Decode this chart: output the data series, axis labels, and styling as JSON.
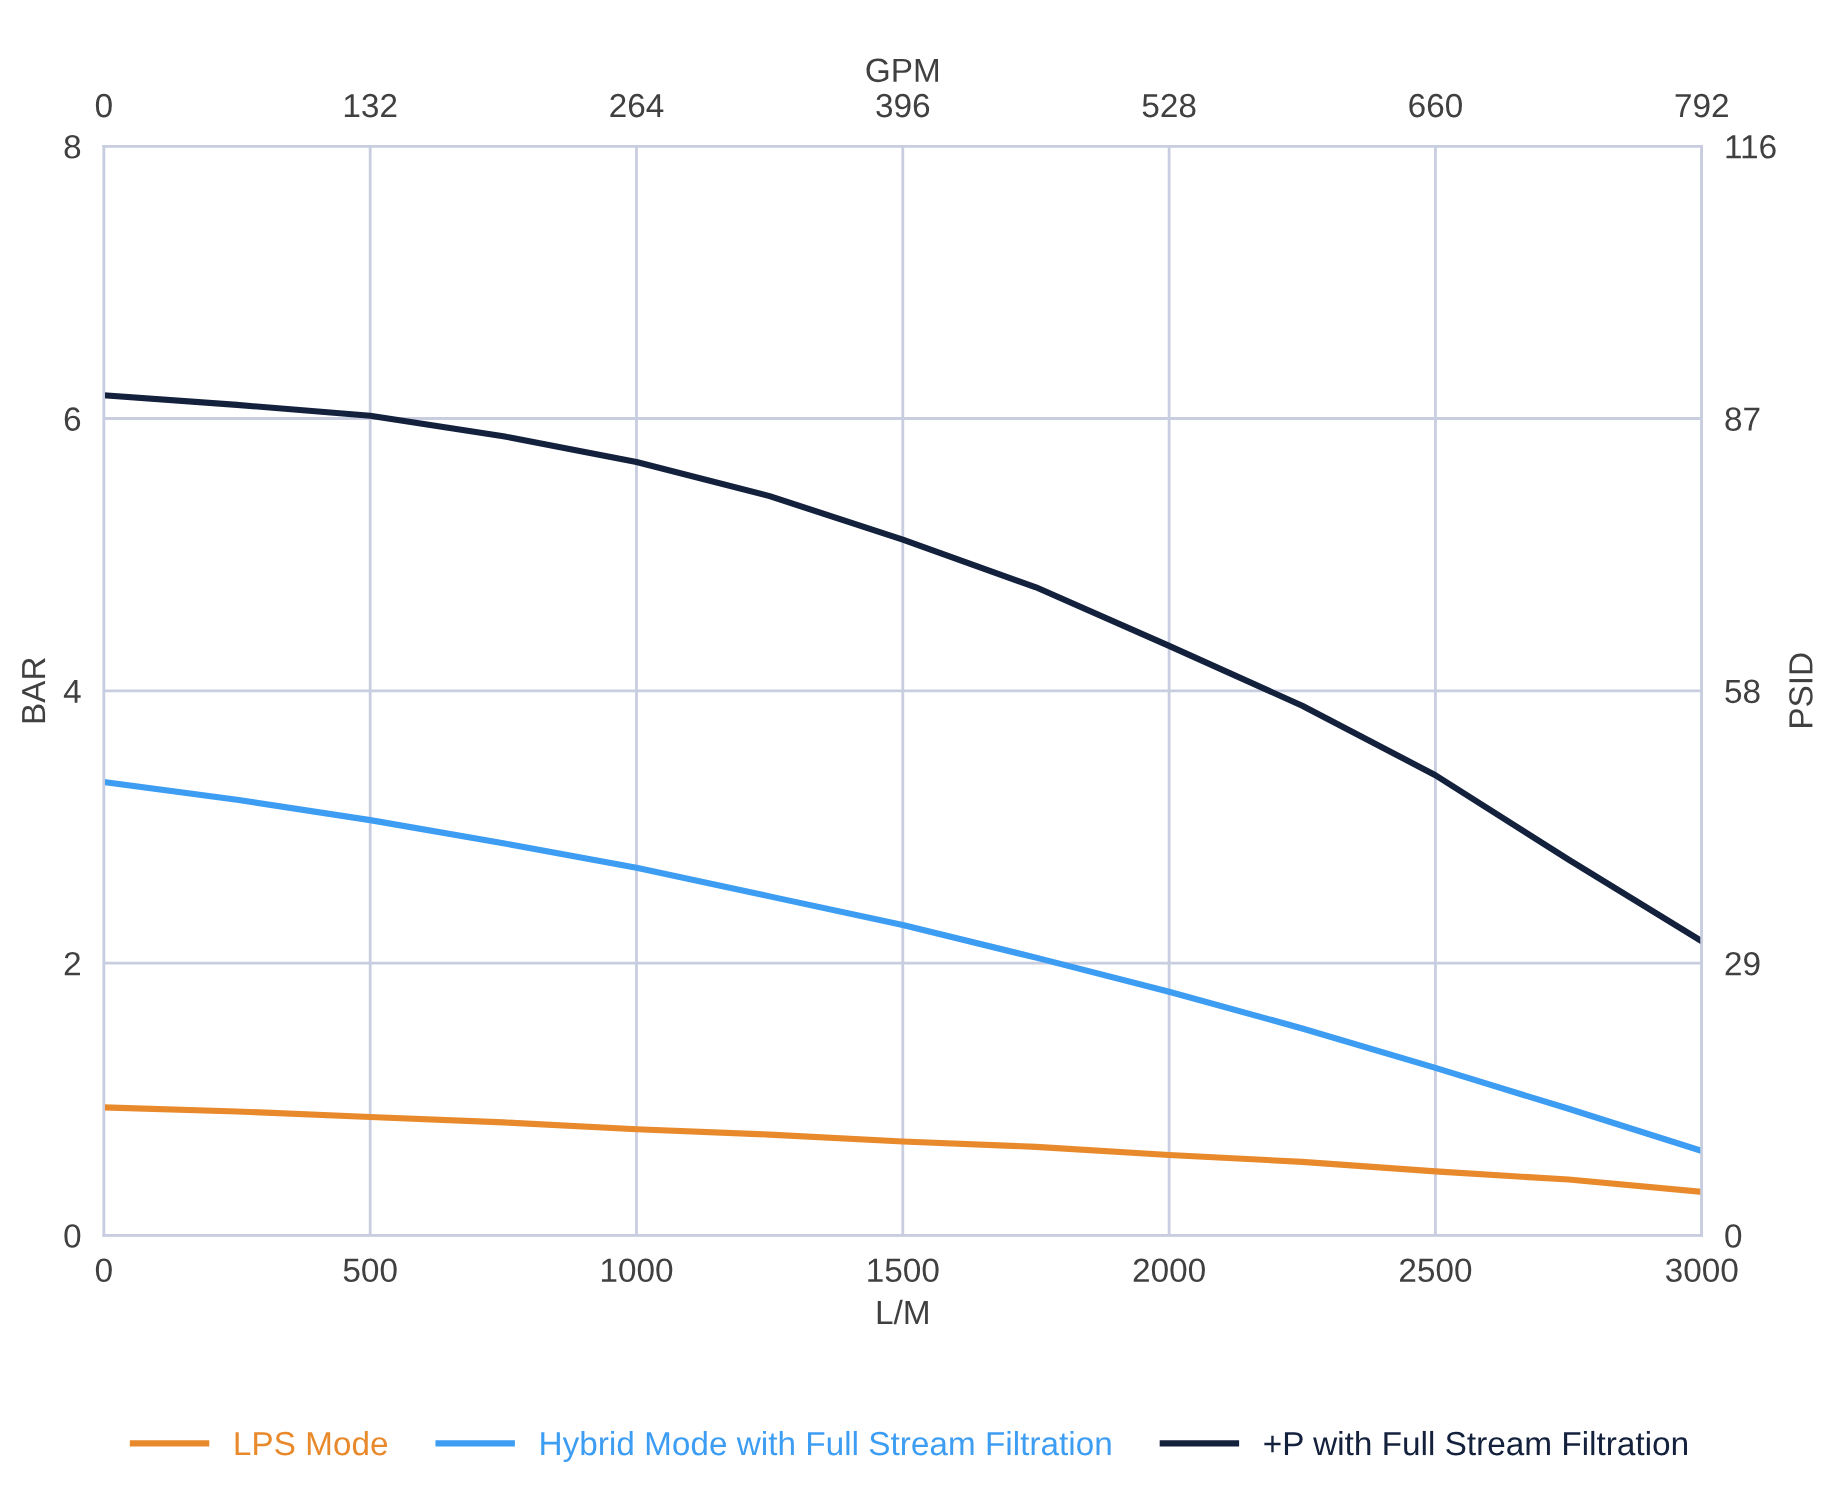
{
  "chart_data": {
    "type": "line",
    "xlabel": "L/M",
    "ylabel": "BAR",
    "x2label": "GPM",
    "y2label": "PSID",
    "xlim": [
      0,
      3000
    ],
    "xticks": [
      0,
      500,
      1000,
      1500,
      2000,
      2500,
      3000
    ],
    "ylim": [
      0,
      8
    ],
    "yticks": [
      0,
      2,
      4,
      6,
      8
    ],
    "x2lim": [
      0,
      792
    ],
    "x2ticks": [
      0,
      132,
      264,
      396,
      528,
      660,
      792
    ],
    "y2lim": [
      0,
      116
    ],
    "y2ticks": [
      0,
      29,
      58,
      87,
      116
    ],
    "grid": true,
    "legend": "bottom",
    "marker": "none",
    "line_style": "solid",
    "x": [
      0,
      250,
      500,
      750,
      1000,
      1250,
      1500,
      1750,
      2000,
      2250,
      2500,
      2750,
      3000
    ],
    "series": [
      {
        "name": "LPS Mode",
        "color": "#e8892b",
        "values": [
          0.94,
          0.91,
          0.87,
          0.83,
          0.78,
          0.74,
          0.69,
          0.65,
          0.59,
          0.54,
          0.47,
          0.41,
          0.32
        ]
      },
      {
        "name": "Hybrid Mode with Full Stream Filtration",
        "color": "#3d9df3",
        "values": [
          3.33,
          3.2,
          3.05,
          2.88,
          2.7,
          2.49,
          2.28,
          2.04,
          1.79,
          1.52,
          1.23,
          0.93,
          0.62
        ]
      },
      {
        "name": "+P with Full Stream Filtration",
        "color": "#14213d",
        "values": [
          6.17,
          6.1,
          6.02,
          5.87,
          5.68,
          5.43,
          5.11,
          4.76,
          4.33,
          3.89,
          3.38,
          2.76,
          2.16
        ]
      }
    ]
  }
}
